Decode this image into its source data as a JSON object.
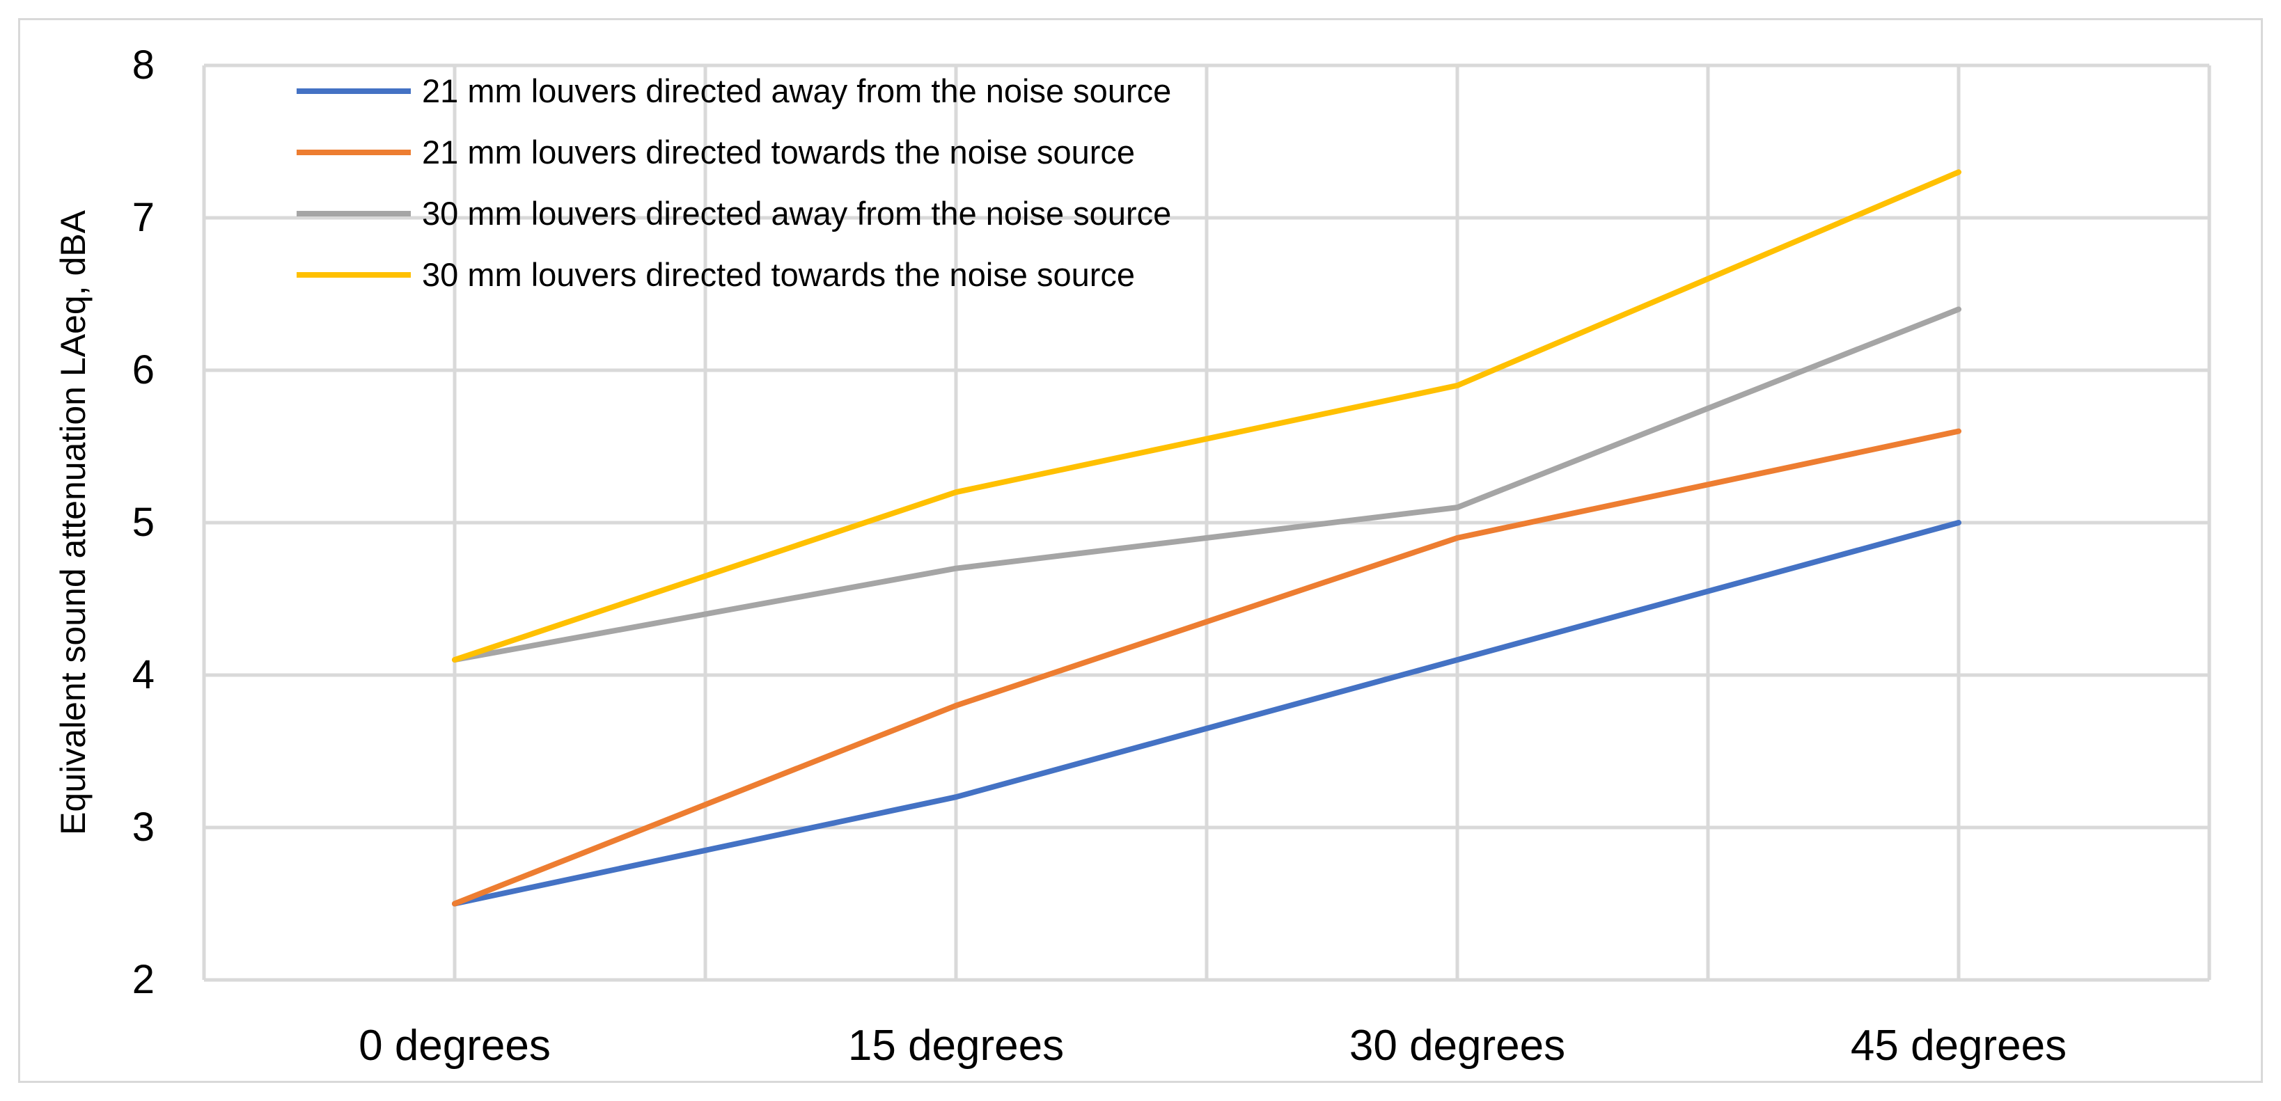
{
  "chart_data": {
    "type": "line",
    "title": "",
    "xlabel": "",
    "ylabel": "Equivalent sound attenuation LAeq, dBA",
    "categories": [
      "0 degrees",
      "15 degrees",
      "30 degrees",
      "45 degrees"
    ],
    "ylim": [
      2,
      8
    ],
    "yticks": [
      2,
      3,
      4,
      5,
      6,
      7,
      8
    ],
    "grid": true,
    "legend_position": "top-left",
    "series": [
      {
        "name": "21 mm louvers directed away from the noise source",
        "color": "#4472c4",
        "values": [
          2.5,
          3.2,
          4.1,
          5.0
        ]
      },
      {
        "name": "21 mm louvers directed towards the noise source",
        "color": "#ed7d31",
        "values": [
          2.5,
          3.8,
          4.9,
          5.6
        ]
      },
      {
        "name": "30 mm louvers directed away from the noise source",
        "color": "#a5a5a5",
        "values": [
          4.1,
          4.7,
          5.1,
          6.4
        ]
      },
      {
        "name": "30 mm louvers directed towards the noise source",
        "color": "#ffc000",
        "values": [
          4.1,
          5.2,
          5.9,
          7.3
        ]
      }
    ]
  }
}
